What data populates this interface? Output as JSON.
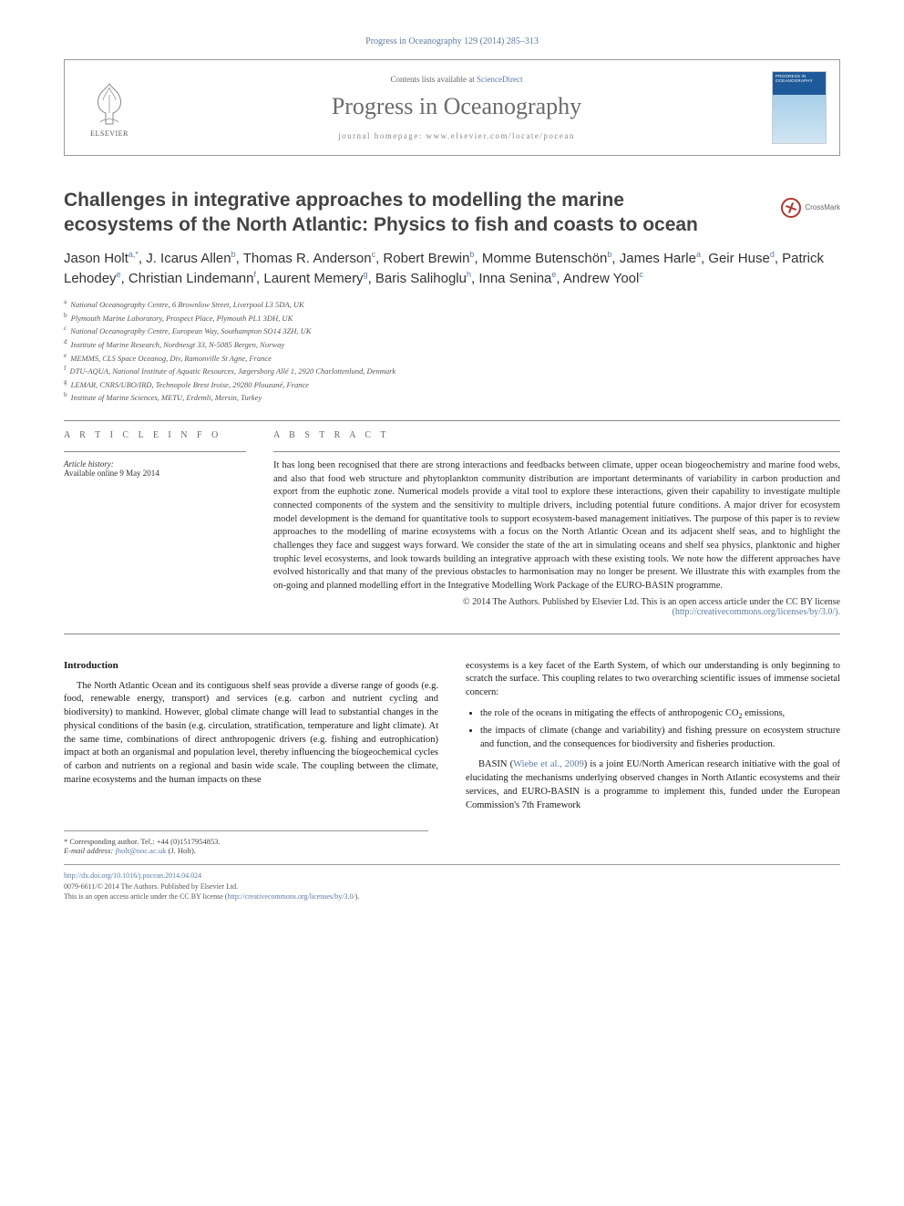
{
  "journal_ref": "Progress in Oceanography 129 (2014) 285–313",
  "header": {
    "elsevier": "ELSEVIER",
    "contents_prefix": "Contents lists available at ",
    "contents_link": "ScienceDirect",
    "journal_name": "Progress in Oceanography",
    "homepage_prefix": "journal homepage: ",
    "homepage_url": "www.elsevier.com/locate/pocean",
    "cover_label": "PROGRESS IN OCEANOGRAPHY"
  },
  "crossmark": "CrossMark",
  "title": "Challenges in integrative approaches to modelling the marine ecosystems of the North Atlantic: Physics to fish and coasts to ocean",
  "authors_html": "Jason Holt<sup>a,*</sup>, J. Icarus Allen<sup>b</sup>, Thomas R. Anderson<sup>c</sup>, Robert Brewin<sup>b</sup>, Momme Butenschön<sup>b</sup>, James Harle<sup>a</sup>, Geir Huse<sup>d</sup>, Patrick Lehodey<sup>e</sup>, Christian Lindemann<sup>f</sup>, Laurent Memery<sup>g</sup>, Baris Salihoglu<sup>h</sup>, Inna Senina<sup>e</sup>, Andrew Yool<sup>c</sup>",
  "affiliations": [
    {
      "sup": "a",
      "text": "National Oceanography Centre, 6 Brownlow Street, Liverpool L3 5DA, UK"
    },
    {
      "sup": "b",
      "text": "Plymouth Marine Laboratory, Prospect Place, Plymouth PL1 3DH, UK"
    },
    {
      "sup": "c",
      "text": "National Oceanography Centre, European Way, Southampton SO14 3ZH, UK"
    },
    {
      "sup": "d",
      "text": "Institute of Marine Research, Nordnesgt 33, N-5085 Bergen, Norway"
    },
    {
      "sup": "e",
      "text": "MEMMS, CLS Space Oceanog, Div, Ramonville St Agne, France"
    },
    {
      "sup": "f",
      "text": "DTU-AQUA, National Institute of Aquatic Resources, Jægersborg Allé 1, 2920 Charlottenlund, Denmark"
    },
    {
      "sup": "g",
      "text": "LEMAR, CNRS/UBO/IRD, Technopole Brest Iroise, 29280 Plouzané, France"
    },
    {
      "sup": "h",
      "text": "Institute of Marine Sciences, METU, Erdemli, Mersin, Turkey"
    }
  ],
  "article_info": {
    "head": "A R T I C L E   I N F O",
    "history_label": "Article history:",
    "history_val": "Available online 9 May 2014"
  },
  "abstract": {
    "head": "A B S T R A C T",
    "text": "It has long been recognised that there are strong interactions and feedbacks between climate, upper ocean biogeochemistry and marine food webs, and also that food web structure and phytoplankton community distribution are important determinants of variability in carbon production and export from the euphotic zone. Numerical models provide a vital tool to explore these interactions, given their capability to investigate multiple connected components of the system and the sensitivity to multiple drivers, including potential future conditions. A major driver for ecosystem model development is the demand for quantitative tools to support ecosystem-based management initiatives. The purpose of this paper is to review approaches to the modelling of marine ecosystems with a focus on the North Atlantic Ocean and its adjacent shelf seas, and to highlight the challenges they face and suggest ways forward. We consider the state of the art in simulating oceans and shelf sea physics, planktonic and higher trophic level ecosystems, and look towards building an integrative approach with these existing tools. We note how the different approaches have evolved historically and that many of the previous obstacles to harmonisation may no longer be present. We illustrate this with examples from the on-going and planned modelling effort in the Integrative Modelling Work Package of the EURO-BASIN programme.",
    "license_line1": "© 2014 The Authors. Published by Elsevier Ltd. This is an open access article under the CC BY license",
    "license_link": "(http://creativecommons.org/licenses/by/3.0/)."
  },
  "body": {
    "intro_head": "Introduction",
    "left_p1": "The North Atlantic Ocean and its contiguous shelf seas provide a diverse range of goods (e.g. food, renewable energy, transport) and services (e.g. carbon and nutrient cycling and biodiversity) to mankind. However, global climate change will lead to substantial changes in the physical conditions of the basin (e.g. circulation, stratification, temperature and light climate). At the same time, combinations of direct anthropogenic drivers (e.g. fishing and eutrophication) impact at both an organismal and population level, thereby influencing the biogeochemical cycles of carbon and nutrients on a regional and basin wide scale. The coupling between the climate, marine ecosystems and the human impacts on these",
    "right_p1": "ecosystems is a key facet of the Earth System, of which our understanding is only beginning to scratch the surface. This coupling relates to two overarching scientific issues of immense societal concern:",
    "bullets": [
      "the role of the oceans in mitigating the effects of anthropogenic CO₂ emissions,",
      "the impacts of climate (change and variability) and fishing pressure on ecosystem structure and function, and the consequences for biodiversity and fisheries production."
    ],
    "right_p2_pre": "BASIN (",
    "right_p2_cite": "Wiebe et al., 2009",
    "right_p2_post": ") is a joint EU/North American research initiative with the goal of elucidating the mechanisms underlying observed changes in North Atlantic ecosystems and their services, and EURO-BASIN is a programme to implement this, funded under the European Commission's 7th Framework"
  },
  "footnotes": {
    "corr": "* Corresponding author. Tel.: +44 (0)1517954853.",
    "email_label": "E-mail address: ",
    "email": "jholt@noc.ac.uk",
    "email_suffix": " (J. Holt)."
  },
  "bottom": {
    "doi": "http://dx.doi.org/10.1016/j.pocean.2014.04.024",
    "issn_line": "0079-6611/© 2014 The Authors. Published by Elsevier Ltd.",
    "oa_line_pre": "This is an open access article under the CC BY license (",
    "oa_link": "http://creativecommons.org/licenses/by/3.0/",
    "oa_line_post": ")."
  },
  "colors": {
    "link": "#5b7ba8",
    "heading_gray": "#6b6b6b",
    "rule": "#888888"
  }
}
